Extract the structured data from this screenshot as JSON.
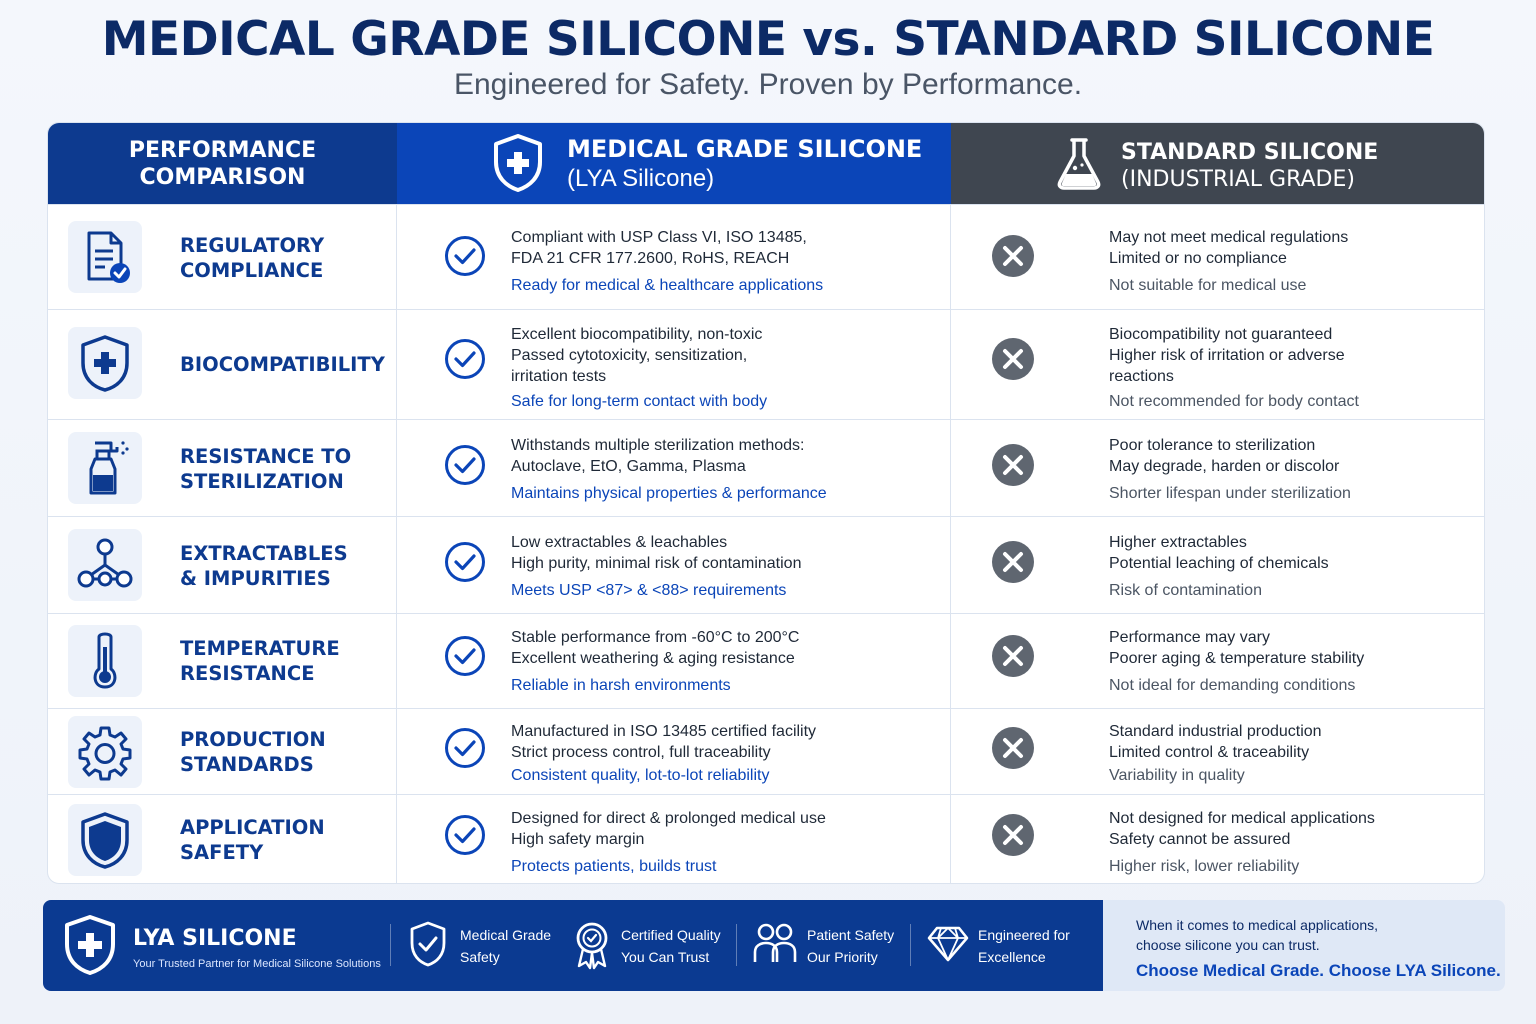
{
  "title": "MEDICAL GRADE SILICONE vs. STANDARD SILICONE",
  "subtitle": "Engineered for Safety. Proven by Performance.",
  "header": {
    "perf": [
      "PERFORMANCE",
      "COMPARISON"
    ],
    "medical": [
      "MEDICAL GRADE SILICONE",
      "(LYA Silicone)"
    ],
    "standard": [
      "STANDARD SILICONE",
      "(INDUSTRIAL GRADE)"
    ]
  },
  "rows": [
    {
      "icon": "document-check-icon",
      "title": [
        "REGULATORY",
        "COMPLIANCE"
      ],
      "medical": [
        "Compliant with USP Class VI, ISO 13485,",
        "FDA 21 CFR 177.2600, RoHS, REACH"
      ],
      "medical_em": "Ready for medical & healthcare applications",
      "standard": [
        "May not meet medical regulations",
        "Limited or no compliance"
      ],
      "standard_em": "Not suitable for medical use"
    },
    {
      "icon": "shield-cross-icon",
      "title": [
        "BIOCOMPATIBILITY"
      ],
      "medical": [
        "Excellent biocompatibility, non-toxic",
        "Passed cytotoxicity, sensitization,",
        "irritation tests"
      ],
      "medical_em": "Safe for long-term contact with body",
      "standard": [
        "Biocompatibility not guaranteed",
        "Higher risk of irritation or adverse",
        "reactions"
      ],
      "standard_em": "Not recommended for body contact"
    },
    {
      "icon": "spray-bottle-icon",
      "title": [
        "RESISTANCE TO",
        "STERILIZATION"
      ],
      "medical": [
        "Withstands multiple sterilization methods:",
        "Autoclave, EtO, Gamma, Plasma"
      ],
      "medical_em": "Maintains physical properties & performance",
      "standard": [
        "Poor tolerance to sterilization",
        "May degrade, harden or discolor"
      ],
      "standard_em": "Shorter lifespan under sterilization"
    },
    {
      "icon": "molecule-icon",
      "title": [
        "EXTRACTABLES",
        "& IMPURITIES"
      ],
      "medical": [
        "Low extractables & leachables",
        "High purity, minimal risk of contamination"
      ],
      "medical_em": "Meets USP <87> & <88> requirements",
      "standard": [
        "Higher extractables",
        "Potential leaching of chemicals"
      ],
      "standard_em": "Risk of contamination"
    },
    {
      "icon": "thermometer-icon",
      "title": [
        "TEMPERATURE",
        "RESISTANCE"
      ],
      "medical": [
        "Stable performance from -60°C to 200°C",
        "Excellent weathering & aging resistance"
      ],
      "medical_em": "Reliable in harsh environments",
      "standard": [
        "Performance may vary",
        "Poorer aging & temperature stability"
      ],
      "standard_em": "Not ideal for demanding conditions"
    },
    {
      "icon": "gear-icon",
      "title": [
        "PRODUCTION",
        "STANDARDS"
      ],
      "medical": [
        "Manufactured in ISO 13485 certified facility",
        "Strict process control, full traceability"
      ],
      "medical_em": "Consistent quality, lot-to-lot reliability",
      "standard": [
        "Standard industrial production",
        "Limited control & traceability"
      ],
      "standard_em": "Variability in quality"
    },
    {
      "icon": "shield-icon",
      "title": [
        "APPLICATION",
        "SAFETY"
      ],
      "medical": [
        "Designed for direct & prolonged medical use",
        "High safety margin"
      ],
      "medical_em": "Protects patients, builds trust",
      "standard": [
        "Not designed for medical applications",
        "Safety cannot be assured"
      ],
      "standard_em": "Higher risk, lower reliability"
    }
  ],
  "footer": {
    "brand": "LYA SILICONE",
    "tagline": "Your Trusted Partner for Medical Silicone Solutions",
    "features": [
      {
        "icon": "shield-check-icon",
        "lines": [
          "Medical Grade",
          "Safety"
        ]
      },
      {
        "icon": "award-badge-icon",
        "lines": [
          "Certified Quality",
          "You Can Trust"
        ]
      },
      {
        "icon": "people-icon",
        "lines": [
          "Patient Safety",
          "Our Priority"
        ]
      },
      {
        "icon": "diamond-icon",
        "lines": [
          "Engineered for",
          "Excellence"
        ]
      }
    ],
    "right_text": [
      "When it comes to medical applications,",
      "choose silicone you can trust."
    ],
    "right_cta": "Choose Medical Grade. Choose LYA Silicone."
  },
  "colors": {
    "navy": "#0d3a8f",
    "blue": "#0b45b8",
    "grey_header": "#3f4650",
    "cross_grey": "#5f6670"
  }
}
